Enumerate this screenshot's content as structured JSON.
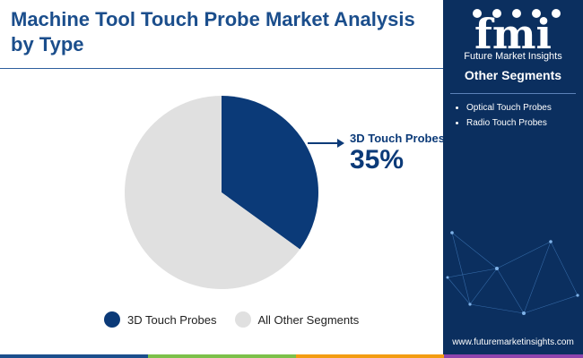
{
  "title": "Machine Tool Touch Probe Market Analysis by Type",
  "colors": {
    "primary": "#0b3a78",
    "secondary": "#e0e0e0",
    "panel": "#0b2f5f",
    "footer": [
      "#1b4e8c",
      "#7cc04a",
      "#f39c12",
      "#8e44ad"
    ]
  },
  "chart_data": {
    "type": "pie",
    "categories": [
      "3D Touch Probes",
      "All Other Segments"
    ],
    "values": [
      35,
      65
    ],
    "unit": "%",
    "annotations": [
      {
        "label": "3D Touch Probes",
        "value": "35%"
      }
    ],
    "legend": [
      "3D Touch Probes",
      "All Other Segments"
    ],
    "legend_position": "bottom"
  },
  "callout": {
    "label": "3D Touch Probes",
    "value": "35%"
  },
  "legend": [
    {
      "label": "3D Touch Probes",
      "color": "#0b3a78"
    },
    {
      "label": "All Other Segments",
      "color": "#e0e0e0"
    }
  ],
  "sidebar": {
    "brand": "Future Market Insights",
    "logo_letters": "fmi",
    "segments_title": "Other Segments",
    "segments": [
      "Optical Touch Probes",
      "Radio Touch Probes"
    ],
    "website": "www.futuremarketinsights.com"
  }
}
